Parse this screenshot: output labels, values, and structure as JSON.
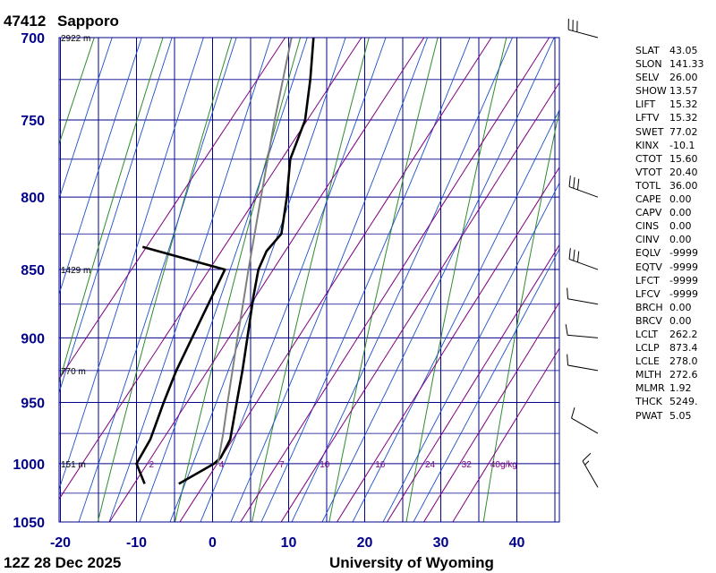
{
  "station": {
    "id": "47412",
    "name": "Sapporo"
  },
  "footer": {
    "time": "12Z 28 Dec 2025",
    "credit": "University of Wyoming"
  },
  "chart_data": {
    "type": "line",
    "subtype": "skew-t log-p",
    "title": "47412  Sapporo",
    "pressure_levels": [
      700,
      750,
      800,
      850,
      900,
      950,
      1000,
      1050
    ],
    "temperature_ticks": [
      -20,
      -10,
      0,
      10,
      20,
      30,
      40
    ],
    "xlim": [
      -20,
      45
    ],
    "ylim": [
      1050,
      700
    ],
    "height_labels": [
      {
        "p": 700,
        "text": "2922 m"
      },
      {
        "p": 850,
        "text": "1429 m"
      },
      {
        "p": 925,
        "text": "770 m"
      },
      {
        "p": 1000,
        "text": "151 m"
      }
    ],
    "mixing_ratio_labels": [
      "2",
      "4",
      "7",
      "10",
      "16",
      "24",
      "32",
      "40g/kg"
    ],
    "series": [
      {
        "key": "temperature",
        "points": [
          {
            "p": 1017,
            "t": -2.5
          },
          {
            "p": 1000,
            "t": 0.2
          },
          {
            "p": 995,
            "t": 0.5
          },
          {
            "p": 980,
            "t": 0.0
          },
          {
            "p": 950,
            "t": -2.7
          },
          {
            "p": 925,
            "t": -5.0
          },
          {
            "p": 900,
            "t": -7.5
          },
          {
            "p": 870,
            "t": -10.6
          },
          {
            "p": 850,
            "t": -12.6
          },
          {
            "p": 837,
            "t": -13.3
          },
          {
            "p": 825,
            "t": -13.0
          },
          {
            "p": 800,
            "t": -15.8
          },
          {
            "p": 775,
            "t": -19.0
          },
          {
            "p": 750,
            "t": -20.8
          },
          {
            "p": 725,
            "t": -24.0
          },
          {
            "p": 700,
            "t": -27.6
          }
        ]
      },
      {
        "key": "dewpoint",
        "points": [
          {
            "p": 1017,
            "t": -7.0
          },
          {
            "p": 1000,
            "t": -10.0
          },
          {
            "p": 980,
            "t": -10.5
          },
          {
            "p": 950,
            "t": -12.3
          },
          {
            "p": 925,
            "t": -13.7
          },
          {
            "p": 850,
            "t": -17.0
          },
          {
            "p": 834,
            "t": -30.0
          }
        ]
      },
      {
        "key": "parcel",
        "points": [
          {
            "p": 1000,
            "t": 0.7
          },
          {
            "p": 975,
            "t": -1.5
          },
          {
            "p": 950,
            "t": -3.9
          },
          {
            "p": 900,
            "t": -8.8
          },
          {
            "p": 873,
            "t": -11.5
          },
          {
            "p": 850,
            "t": -13.9
          },
          {
            "p": 800,
            "t": -19.2
          },
          {
            "p": 750,
            "t": -24.8
          },
          {
            "p": 700,
            "t": -30.5
          }
        ]
      }
    ],
    "wind_barbs": [
      {
        "p": 700,
        "dir": 285,
        "speed": 30
      },
      {
        "p": 800,
        "dir": 290,
        "speed": 30
      },
      {
        "p": 850,
        "dir": 290,
        "speed": 30
      },
      {
        "p": 875,
        "dir": 280,
        "speed": 10
      },
      {
        "p": 900,
        "dir": 275,
        "speed": 10
      },
      {
        "p": 925,
        "dir": 280,
        "speed": 10
      },
      {
        "p": 975,
        "dir": 300,
        "speed": 10
      },
      {
        "p": 1020,
        "dir": 330,
        "speed": 15
      }
    ]
  },
  "indices": [
    {
      "k": "SLAT",
      "v": "43.05"
    },
    {
      "k": "SLON",
      "v": "141.33"
    },
    {
      "k": "SELV",
      "v": "26.00"
    },
    {
      "k": "SHOW",
      "v": "13.57"
    },
    {
      "k": "LIFT",
      "v": "15.32"
    },
    {
      "k": "LFTV",
      "v": "15.32"
    },
    {
      "k": "SWET",
      "v": "77.02"
    },
    {
      "k": "KINX",
      "v": "-10.1"
    },
    {
      "k": "CTOT",
      "v": "15.60"
    },
    {
      "k": "VTOT",
      "v": "20.40"
    },
    {
      "k": "TOTL",
      "v": "36.00"
    },
    {
      "k": "CAPE",
      "v": "0.00"
    },
    {
      "k": "CAPV",
      "v": "0.00"
    },
    {
      "k": "CINS",
      "v": "0.00"
    },
    {
      "k": "CINV",
      "v": "0.00"
    },
    {
      "k": "EQLV",
      "v": "-9999"
    },
    {
      "k": "EQTV",
      "v": "-9999"
    },
    {
      "k": "LFCT",
      "v": "-9999"
    },
    {
      "k": "LFCV",
      "v": "-9999"
    },
    {
      "k": "BRCH",
      "v": "0.00"
    },
    {
      "k": "BRCV",
      "v": "0.00"
    },
    {
      "k": "LCLT",
      "v": "262.2"
    },
    {
      "k": "LCLP",
      "v": "873.4"
    },
    {
      "k": "LCLE",
      "v": "278.0"
    },
    {
      "k": "MLTH",
      "v": "272.6"
    },
    {
      "k": "MLMR",
      "v": "1.92"
    },
    {
      "k": "THCK",
      "v": "5249."
    },
    {
      "k": "PWAT",
      "v": "5.05"
    }
  ],
  "colors": {
    "isobar": "#00008b",
    "isotherm": "#00008b",
    "dry_adiabat": "#2e8b2e",
    "moist_adiabat": "#1e50c8",
    "mixing_ratio": "#800080",
    "sounding": "#000000",
    "parcel": "#808080"
  }
}
